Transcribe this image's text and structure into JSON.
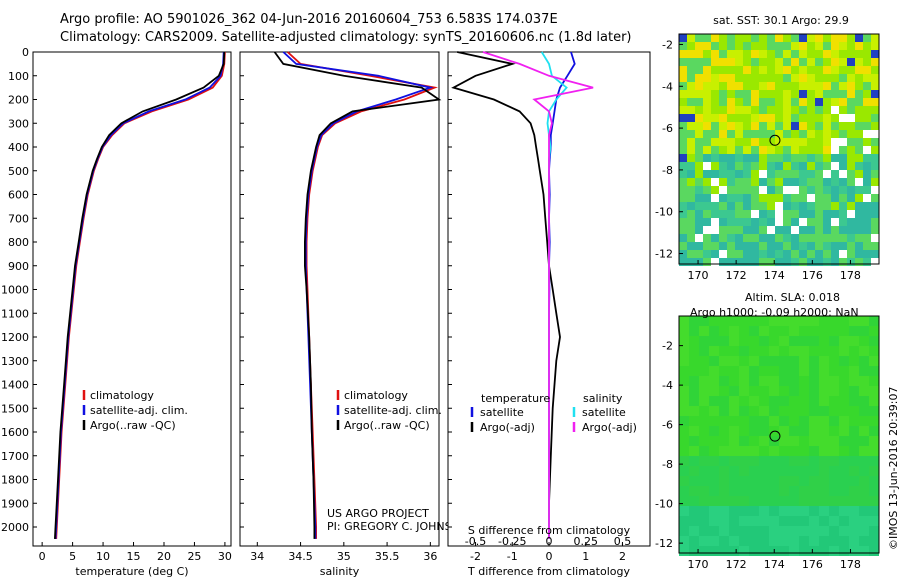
{
  "header": {
    "line1": "Argo profile: AO 5901026_362 04-Jun-2016 20160604_753 6.583S 174.037E",
    "line2": "Climatology: CARS2009. Satellite-adjusted climatology: synTS_20160606.nc (1.8d later)"
  },
  "colors": {
    "climatology": "#e01010",
    "satellite": "#1010e0",
    "argo": "#000000",
    "sal_satellite": "#20e0f0",
    "sal_argo": "#f020f0"
  },
  "chart_data": [
    {
      "type": "line",
      "name": "temperature-panel",
      "title": "",
      "xlabel": "temperature (deg C)",
      "ylabel": "",
      "xlim": [
        -1.5,
        31
      ],
      "ylim": [
        2080,
        0
      ],
      "x_ticks": [
        "0",
        "5",
        "10",
        "15",
        "20",
        "25",
        "30"
      ],
      "y_ticks": [
        "0",
        "100",
        "200",
        "300",
        "400",
        "500",
        "600",
        "700",
        "800",
        "900",
        "1000",
        "1100",
        "1200",
        "1300",
        "1400",
        "1500",
        "1600",
        "1700",
        "1800",
        "1900",
        "2000"
      ],
      "depth": [
        0,
        50,
        100,
        150,
        200,
        250,
        300,
        350,
        400,
        450,
        500,
        600,
        700,
        800,
        900,
        1000,
        1200,
        1400,
        1600,
        1800,
        2000,
        2050
      ],
      "series": [
        {
          "name": "climatology",
          "values": [
            30,
            29.9,
            29.5,
            28,
            24,
            18,
            13.5,
            11.5,
            10,
            9.2,
            8.5,
            7.5,
            6.8,
            6.2,
            5.6,
            5.2,
            4.4,
            3.8,
            3.2,
            2.8,
            2.4,
            2.3
          ]
        },
        {
          "name": "satellite-adj. clim.",
          "values": [
            29.8,
            29.7,
            29.3,
            27.5,
            23.5,
            17.5,
            13.3,
            11.3,
            9.9,
            9.1,
            8.4,
            7.4,
            6.7,
            6.1,
            5.5,
            5.1,
            4.3,
            3.7,
            3.1,
            2.7,
            2.3,
            2.2
          ]
        },
        {
          "name": "Argo(..raw -QC)",
          "values": [
            29.9,
            29.8,
            29.0,
            26.5,
            22.0,
            16.5,
            13.0,
            11.0,
            9.8,
            9.0,
            8.3,
            7.3,
            6.6,
            6.0,
            5.4,
            5.0,
            4.2,
            3.6,
            3.0,
            2.6,
            2.2,
            2.1
          ]
        }
      ],
      "legend": [
        "climatology",
        "satellite-adj. clim.",
        "Argo(..raw -QC)"
      ]
    },
    {
      "type": "line",
      "name": "salinity-panel",
      "xlabel": "salinity",
      "xlim": [
        33.8,
        36.1
      ],
      "ylim": [
        2080,
        0
      ],
      "x_ticks": [
        "34",
        "34.5",
        "35",
        "35.5",
        "36"
      ],
      "depth": [
        0,
        50,
        100,
        150,
        200,
        250,
        300,
        350,
        400,
        450,
        500,
        600,
        700,
        800,
        900,
        1000,
        1200,
        1400,
        1600,
        1800,
        2000,
        2050
      ],
      "series": [
        {
          "name": "climatology",
          "values": [
            34.35,
            34.5,
            35.3,
            36.05,
            35.7,
            35.2,
            34.9,
            34.75,
            34.7,
            34.67,
            34.64,
            34.6,
            34.58,
            34.57,
            34.57,
            34.58,
            34.6,
            34.62,
            34.64,
            34.66,
            34.68,
            34.68
          ]
        },
        {
          "name": "satellite-adj. clim.",
          "values": [
            34.3,
            34.45,
            35.4,
            36.0,
            35.6,
            35.15,
            34.88,
            34.74,
            34.69,
            34.66,
            34.63,
            34.59,
            34.57,
            34.56,
            34.56,
            34.57,
            34.59,
            34.61,
            34.63,
            34.65,
            34.67,
            34.67
          ]
        },
        {
          "name": "Argo(..raw -QC)",
          "values": [
            34.2,
            34.3,
            35.0,
            35.9,
            36.1,
            35.1,
            34.85,
            34.72,
            34.68,
            34.65,
            34.62,
            34.58,
            34.56,
            34.55,
            34.55,
            34.57,
            34.6,
            34.62,
            34.63,
            34.65,
            34.66,
            34.66
          ]
        }
      ],
      "legend": [
        "climatology",
        "satellite-adj. clim.",
        "Argo(..raw -QC)"
      ],
      "annotations": [
        "US ARGO PROJECT",
        "PI: GREGORY C. JOHNSON"
      ]
    },
    {
      "type": "line",
      "name": "difference-panel",
      "xlabel": "T difference from climatology",
      "x2label": "S difference from climatology",
      "xlim": [
        -2.75,
        2.75
      ],
      "ylim": [
        2080,
        0
      ],
      "x_ticks": [
        "-2",
        "-1",
        "0",
        "1",
        "2"
      ],
      "x2_ticks": [
        "-0.5",
        "-0.25",
        "0",
        "0.25",
        "0.5"
      ],
      "depth": [
        0,
        50,
        100,
        150,
        200,
        250,
        300,
        350,
        400,
        450,
        500,
        600,
        700,
        800,
        900,
        1000,
        1100,
        1200,
        1300,
        1500,
        1700,
        1900,
        2050
      ],
      "series": [
        {
          "name": "temperature satellite",
          "values": [
            0.6,
            0.7,
            0.5,
            0.3,
            0.2,
            0.15,
            0.1,
            0.05,
            0.05,
            0.02,
            0.0,
            0.02,
            0.0,
            0.02,
            0.0,
            0.01,
            0.0,
            0.0,
            0.0,
            0.0,
            0.0,
            0.0,
            0.0
          ]
        },
        {
          "name": "temperature Argo(-adj)",
          "values": [
            -2.5,
            -1.0,
            -2.0,
            -2.6,
            -1.5,
            -0.8,
            -0.5,
            -0.4,
            -0.35,
            -0.3,
            -0.25,
            -0.15,
            -0.1,
            -0.05,
            0.0,
            0.1,
            0.2,
            0.3,
            0.2,
            0.1,
            0.05,
            0.0,
            0.0
          ]
        },
        {
          "name": "salinity satellite",
          "values": [
            -0.05,
            0.0,
            0.02,
            0.12,
            0.05,
            0.0,
            -0.01,
            0.0,
            0.01,
            0.0,
            0.0,
            0.0,
            0.0,
            0.0,
            0.0,
            0.0,
            0.0,
            0.0,
            0.0,
            0.0,
            0.0,
            0.0,
            0.0
          ]
        },
        {
          "name": "salinity Argo(-adj)",
          "values": [
            -0.45,
            -0.2,
            0.0,
            0.3,
            -0.1,
            0.0,
            0.02,
            0.0,
            0.0,
            0.0,
            0.0,
            0.0,
            0.0,
            0.0,
            0.0,
            0.0,
            0.0,
            0.0,
            0.0,
            0.0,
            0.0,
            0.0,
            0.0
          ]
        }
      ],
      "legend_titles": [
        "temperature",
        "salinity"
      ],
      "legend": [
        "satellite",
        "Argo(-adj)",
        "satellite",
        "Argo(-adj)"
      ]
    },
    {
      "type": "heatmap",
      "name": "sst-map",
      "title": "sat. SST: 30.1  Argo: 29.9",
      "xlim": [
        169,
        179.5
      ],
      "ylim": [
        -12.5,
        -1.5
      ],
      "x_ticks": [
        "170",
        "172",
        "174",
        "176",
        "178"
      ],
      "y_ticks": [
        "-2",
        "-4",
        "-6",
        "-8",
        "-10",
        "-12"
      ],
      "marker": {
        "lon": 174.037,
        "lat": -6.583
      }
    },
    {
      "type": "heatmap",
      "name": "sla-map",
      "title": "Altim. SLA: 0.018",
      "subtitle": "Argo h1000: -0.09 h2000: NaN",
      "xlim": [
        169,
        179.5
      ],
      "ylim": [
        -12.5,
        -0.5
      ],
      "x_ticks": [
        "170",
        "172",
        "174",
        "176",
        "178"
      ],
      "y_ticks": [
        "-2",
        "-4",
        "-6",
        "-8",
        "-10",
        "-12"
      ],
      "marker": {
        "lon": 174.037,
        "lat": -6.583
      }
    }
  ],
  "stamp": "©IMOS 13-Jun-2016 20:39:07"
}
